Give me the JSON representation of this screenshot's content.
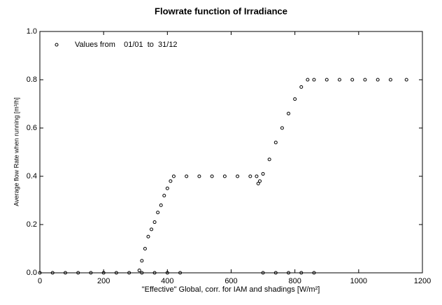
{
  "chart_data": {
    "type": "scatter",
    "title": "Flowrate function of Irradiance",
    "xlabel": "\"Effective\" Global, corr. for IAM and shadings [W/m²]",
    "ylabel": "Average flow Rate when running [m³/h]",
    "x": [
      0,
      40,
      80,
      120,
      160,
      200,
      240,
      280,
      320,
      360,
      400,
      440,
      700,
      740,
      780,
      820,
      860,
      312,
      320,
      330,
      340,
      350,
      360,
      370,
      380,
      390,
      400,
      410,
      420,
      460,
      500,
      540,
      580,
      620,
      660,
      680,
      685,
      690,
      700,
      720,
      740,
      760,
      780,
      800,
      820,
      840,
      860,
      900,
      940,
      980,
      1020,
      1060,
      1100,
      1150
    ],
    "series": [
      {
        "name": "Values from    01/01  to  31/12",
        "color": "#000000",
        "values": [
          0,
          0,
          0,
          0,
          0,
          0,
          0,
          0,
          0,
          0,
          0,
          0,
          0,
          0,
          0,
          0,
          0,
          0.01,
          0.05,
          0.1,
          0.15,
          0.18,
          0.21,
          0.25,
          0.28,
          0.32,
          0.35,
          0.38,
          0.4,
          0.4,
          0.4,
          0.4,
          0.4,
          0.4,
          0.4,
          0.4,
          0.37,
          0.38,
          0.41,
          0.47,
          0.54,
          0.6,
          0.66,
          0.72,
          0.77,
          0.8,
          0.8,
          0.8,
          0.8,
          0.8,
          0.8,
          0.8,
          0.8,
          0.8
        ]
      }
    ],
    "xlim": [
      0,
      1200
    ],
    "xticks": [
      0,
      200,
      400,
      600,
      800,
      1000,
      1200
    ],
    "ylim": [
      0,
      1
    ],
    "yticks": [
      {
        "value": 0,
        "label": "0.0"
      },
      0.2,
      0.4,
      0.6,
      0.8,
      {
        "value": 1,
        "label": "1.0"
      }
    ],
    "legend": "upper left"
  }
}
